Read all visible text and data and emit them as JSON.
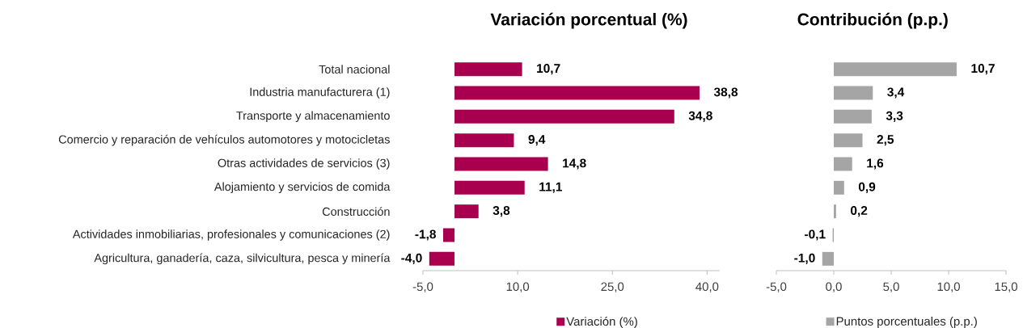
{
  "chart_data": [
    {
      "type": "bar",
      "orientation": "horizontal",
      "title": "Variación porcentual (%)",
      "categories": [
        "Total nacional",
        "Industria manufacturera (1)",
        "Transporte y almacenamiento",
        "Comercio y reparación de vehículos automotores y motocicletas",
        "Otras actividades de servicios (3)",
        "Alojamiento y servicios de comida",
        "Construcción",
        "Actividades inmobiliarias, profesionales y comunicaciones (2)",
        "Agricultura, ganadería, caza, silvicultura, pesca y minería"
      ],
      "series": [
        {
          "name": "Variación (%)",
          "color": "#a8004f",
          "values": [
            10.7,
            38.8,
            34.8,
            9.4,
            14.8,
            11.1,
            3.8,
            -1.8,
            -4.0
          ],
          "value_labels": [
            "10,7",
            "38,8",
            "34,8",
            "9,4",
            "14,8",
            "11,1",
            "3,8",
            "-1,8",
            "-4,0"
          ]
        }
      ],
      "xlim": [
        -5,
        42
      ],
      "xticks": [
        {
          "value": -5,
          "label": "-5,0"
        },
        {
          "value": 10,
          "label": "10,0"
        },
        {
          "value": 25,
          "label": "25,0"
        },
        {
          "value": 40,
          "label": "40,0"
        }
      ],
      "legend": "bottom"
    },
    {
      "type": "bar",
      "orientation": "horizontal",
      "title": "Contribución (p.p.)",
      "categories": [
        null,
        null,
        null,
        null,
        null,
        null,
        null,
        null,
        null
      ],
      "series": [
        {
          "name": "Puntos porcentuales (p.p.)",
          "color": "#a5a5a5",
          "values": [
            10.7,
            3.4,
            3.3,
            2.5,
            1.6,
            0.9,
            0.2,
            -0.1,
            -1.0
          ],
          "value_labels": [
            "10,7",
            "3,4",
            "3,3",
            "2,5",
            "1,6",
            "0,9",
            "0,2",
            "-0,1",
            "-1,0"
          ]
        }
      ],
      "xlim": [
        -5,
        15
      ],
      "xticks": [
        {
          "value": -5,
          "label": "-5,0"
        },
        {
          "value": 0,
          "label": "0,0"
        },
        {
          "value": 5,
          "label": "5,0"
        },
        {
          "value": 10,
          "label": "10,0"
        },
        {
          "value": 15,
          "label": "15,0"
        }
      ],
      "legend": "bottom"
    }
  ]
}
